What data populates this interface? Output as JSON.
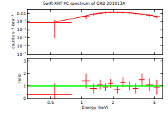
{
  "chart_data": [
    {
      "type": "scatter",
      "title": "Swift-XRT PC spectrum of GRB 201013A",
      "y_label": "counts s⁻¹ keV⁻¹",
      "log": true,
      "tick_labels": "y",
      "xlim": [
        0.3,
        6
      ],
      "xticks": [
        0.5,
        1,
        2,
        5
      ],
      "ylim": [
        1e-07,
        0.03
      ],
      "yticks": [
        0.01,
        {
          "value": 0.001,
          "label": "10⁻³"
        },
        {
          "value": 0.0001,
          "label": "10⁻⁴"
        },
        {
          "value": 1e-05,
          "label": "10⁻⁵"
        },
        {
          "value": 1e-06,
          "label": "10⁻⁶"
        },
        {
          "value": 1e-07,
          "label": "10⁻⁷"
        }
      ],
      "x": [
        0.55,
        1.1,
        1.3,
        1.5,
        1.7,
        1.9,
        2.2,
        2.5,
        2.9,
        3.3,
        3.8,
        4.5,
        5.3
      ],
      "series": [
        {
          "color": "#ff0000",
          "marker": "none",
          "values": [
            0.0008,
            0.004,
            0.008,
            0.011,
            0.013,
            0.014,
            0.014,
            0.013,
            0.012,
            0.01,
            0.008,
            0.006,
            0.004
          ],
          "errors": [
            0.00079,
            0.002,
            0.0025,
            0.003,
            0.003,
            0.003,
            0.003,
            0.003,
            0.003,
            0.0025,
            0.002,
            0.002,
            0.0015
          ],
          "x_errors": [
            0.25,
            0.1,
            0.1,
            0.1,
            0.1,
            0.1,
            0.15,
            0.15,
            0.2,
            0.2,
            0.25,
            0.35,
            0.4
          ]
        },
        {
          "color": "#ff0000",
          "line_style": "solid",
          "values": [
            0.0009,
            0.005,
            0.009,
            0.012,
            0.0135,
            0.0142,
            0.0142,
            0.0135,
            0.0122,
            0.0105,
            0.0085,
            0.0062,
            0.0042
          ]
        }
      ]
    },
    {
      "type": "scatter",
      "x_label": "Energy (keV)",
      "y_label": "ratio",
      "log": "x",
      "xlim": [
        0.3,
        6
      ],
      "xticks": [
        0.5,
        1,
        2,
        5
      ],
      "ylim": [
        0,
        3.2
      ],
      "yticks": [
        0,
        1,
        2,
        3
      ],
      "x": [
        0.55,
        1.1,
        1.3,
        1.5,
        1.7,
        1.9,
        2.2,
        2.5,
        2.9,
        3.3,
        3.8,
        4.5,
        5.3
      ],
      "series": [
        {
          "color": "#ff0000",
          "marker": "none",
          "values": [
            0.3,
            1.4,
            0.8,
            1.1,
            0.9,
            1.2,
            0.7,
            1.3,
            1.0,
            0.8,
            1.5,
            1.1,
            0.9
          ],
          "errors": [
            0.9,
            0.6,
            0.4,
            0.4,
            0.3,
            0.35,
            0.3,
            0.4,
            0.35,
            0.4,
            0.5,
            0.5,
            0.6
          ],
          "x_errors": [
            0.25,
            0.1,
            0.1,
            0.1,
            0.1,
            0.1,
            0.15,
            0.15,
            0.2,
            0.2,
            0.25,
            0.35,
            0.4
          ]
        },
        {
          "color": "#00ff00",
          "line_style": "solid",
          "x": [
            0.3,
            6
          ],
          "values": [
            1,
            1
          ]
        }
      ]
    }
  ]
}
